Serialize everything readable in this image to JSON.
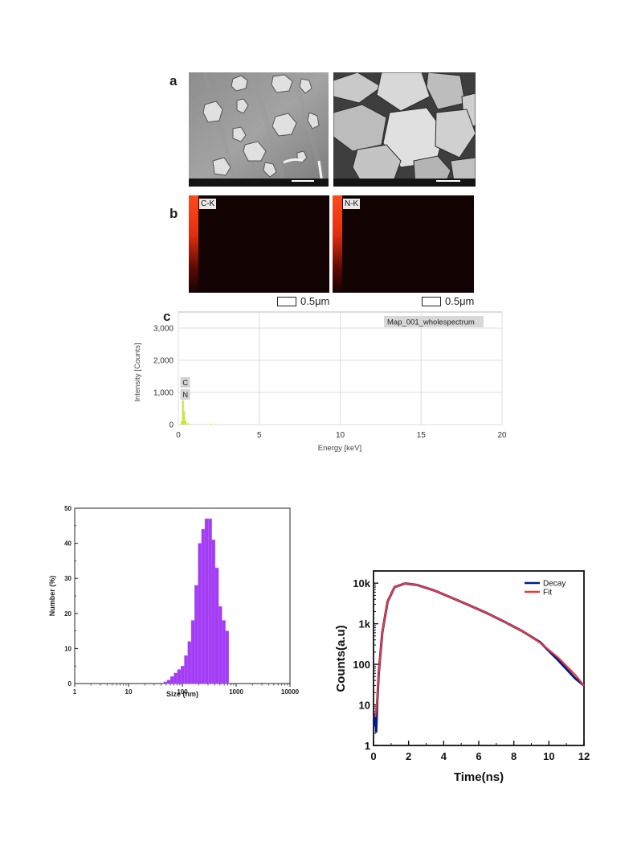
{
  "panels": {
    "a_label": "a",
    "b_label": "b",
    "c_label": "c"
  },
  "eds_maps": [
    {
      "tag": "C-K",
      "scale": "0.5μm"
    },
    {
      "tag": "N-K",
      "scale": "0.5μm"
    }
  ],
  "chart_data": [
    {
      "type": "bar",
      "title": "",
      "legend": {
        "label": "Map_001_wholespectrum",
        "placement": "top-right"
      },
      "xlabel": "Energy [keV]",
      "ylabel": "Intensity [Counts]",
      "xlim": [
        0,
        20
      ],
      "ylim": [
        0,
        3500
      ],
      "x_ticks": [
        0,
        5,
        10,
        15,
        20
      ],
      "y_ticks": [
        0,
        1000,
        2000,
        3000
      ],
      "y_tick_labels": [
        "0",
        "1,000",
        "2,000",
        "3,000"
      ],
      "grid": true,
      "peak_labels": [
        "C",
        "N"
      ],
      "x": [
        0.2,
        0.28,
        0.35,
        0.45,
        0.6,
        0.8,
        1.0,
        1.3,
        1.6,
        2.0,
        2.3
      ],
      "values": [
        100,
        750,
        420,
        120,
        40,
        20,
        12,
        10,
        8,
        30,
        10
      ],
      "color": "#c8e63c"
    },
    {
      "type": "bar",
      "title": "",
      "xlabel": "Size (nm)",
      "ylabel": "Number (%)",
      "x_scale": "log",
      "xlim": [
        1,
        10000
      ],
      "ylim": [
        0,
        50
      ],
      "x_ticks": [
        1,
        10,
        100,
        1000,
        10000
      ],
      "y_ticks": [
        0,
        10,
        20,
        30,
        40,
        50
      ],
      "grid": false,
      "bin_edges": [
        45,
        52,
        60,
        70,
        81,
        94,
        109,
        126,
        146,
        169,
        196,
        227,
        262,
        304,
        352,
        407,
        471,
        545,
        631,
        730
      ],
      "values": [
        0.5,
        1,
        2,
        3,
        4,
        5,
        8,
        12,
        18,
        28,
        40,
        44,
        47,
        47,
        41,
        33,
        22,
        18,
        15
      ],
      "color": "#a43cf5"
    },
    {
      "type": "line",
      "title": "",
      "xlabel": "Time(ns)",
      "ylabel": "Counts(a.u)",
      "y_scale": "log",
      "xlim": [
        0,
        12
      ],
      "ylim": [
        1,
        20000
      ],
      "x_ticks": [
        0,
        2,
        4,
        6,
        8,
        10,
        12
      ],
      "y_ticks": [
        1,
        10,
        100,
        1000,
        10000
      ],
      "y_tick_labels": [
        "1",
        "10",
        "100",
        "1k",
        "10k"
      ],
      "legend_placement": "top-right",
      "series": [
        {
          "name": "Decay",
          "color": "#001b8a",
          "x": [
            0.05,
            0.1,
            0.15,
            0.2,
            0.3,
            0.5,
            0.8,
            1.2,
            1.8,
            2.5,
            3.5,
            4.5,
            5.5,
            6.5,
            7.5,
            8.5,
            9.5,
            10.5,
            11.5,
            12
          ],
          "y": [
            3,
            6,
            2.2,
            10,
            60,
            600,
            3500,
            8000,
            9800,
            9000,
            6500,
            4300,
            2800,
            1800,
            1100,
            650,
            350,
            130,
            45,
            30
          ]
        },
        {
          "name": "Fit",
          "color": "#e63c3c",
          "x": [
            0.1,
            0.2,
            0.3,
            0.5,
            0.8,
            1.2,
            1.8,
            2.5,
            3.5,
            4.5,
            5.5,
            6.5,
            7.5,
            8.5,
            9.5,
            10.5,
            11.5,
            12
          ],
          "y": [
            5,
            12,
            60,
            600,
            3500,
            8000,
            9800,
            9000,
            6500,
            4300,
            2800,
            1800,
            1100,
            650,
            340,
            150,
            55,
            30
          ]
        }
      ]
    }
  ]
}
